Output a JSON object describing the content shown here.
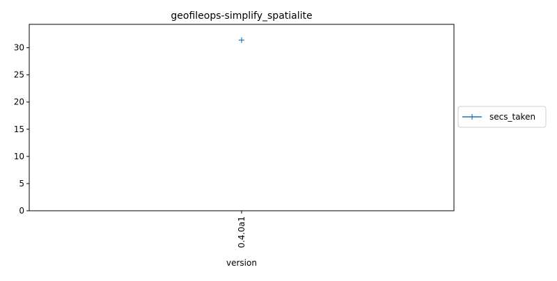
{
  "chart_data": {
    "type": "line",
    "title": "geofileops-simplify_spatialite",
    "xlabel": "version",
    "ylabel": "",
    "categories": [
      "0.4.0a1"
    ],
    "x_range": [
      -1,
      1
    ],
    "ylim": [
      0,
      34.3
    ],
    "yticks": [
      0,
      5,
      10,
      15,
      20,
      25,
      30
    ],
    "grid": false,
    "legend": {
      "placement": "outside-right",
      "entries": [
        "secs_taken"
      ]
    },
    "series": [
      {
        "name": "secs_taken",
        "values": [
          31.4
        ],
        "color": "#1f77b4",
        "marker": "plus"
      }
    ]
  }
}
